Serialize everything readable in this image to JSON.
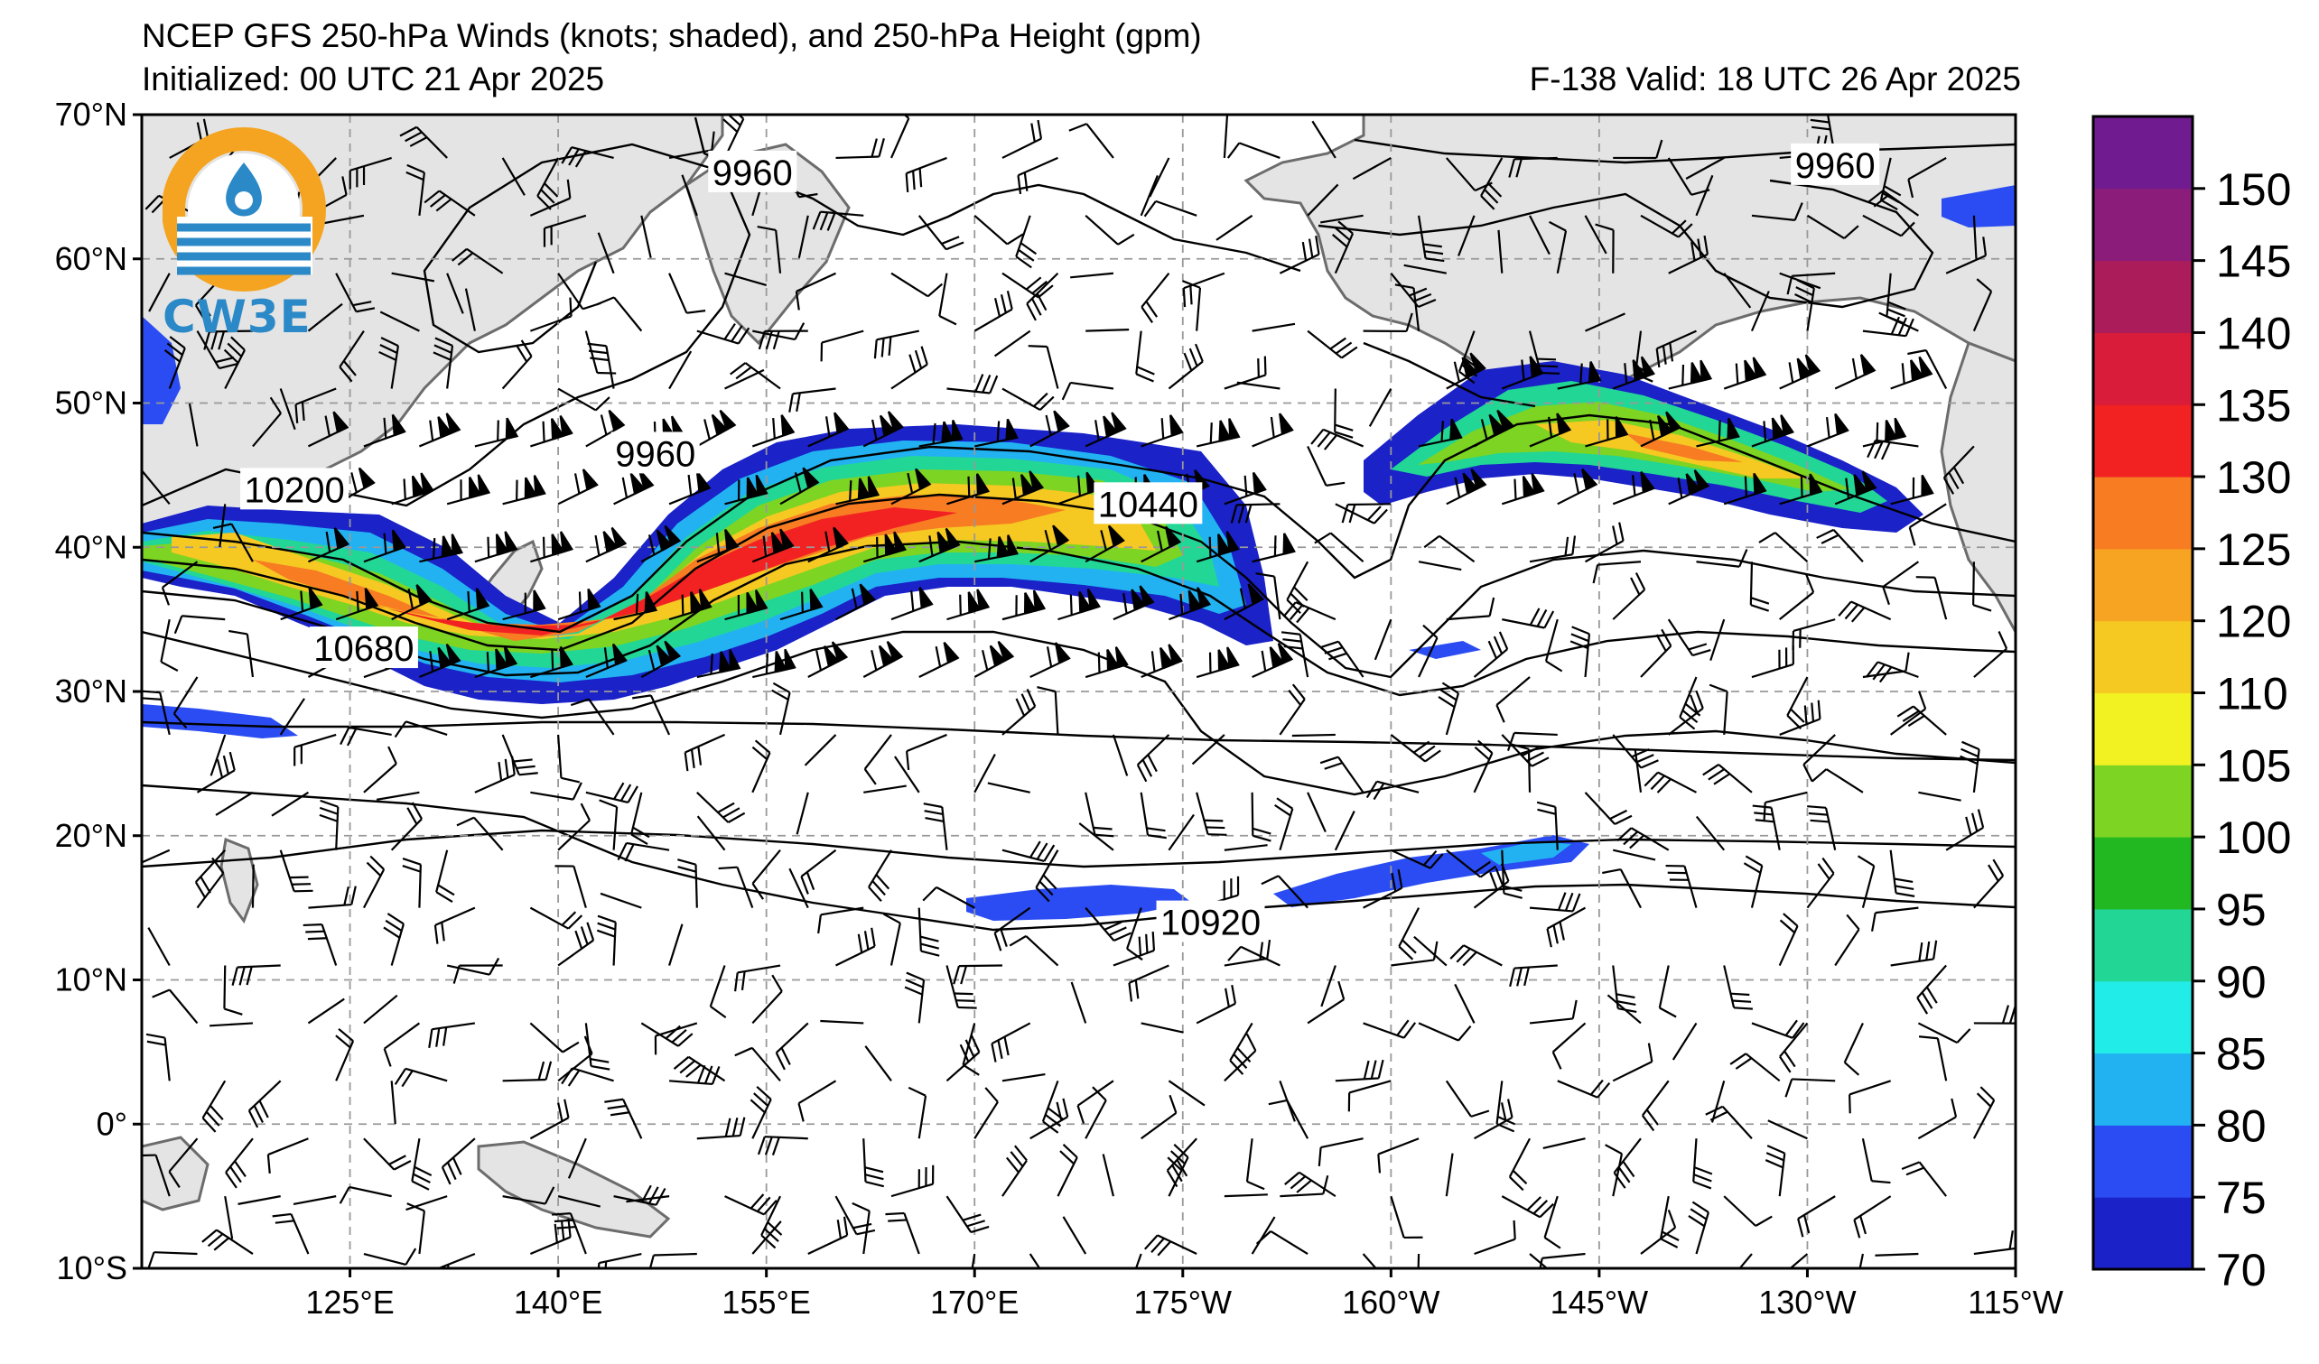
{
  "header": {
    "title": "NCEP GFS 250-hPa Winds (knots; shaded), and 250-hPa Height (gpm)",
    "initialized": "Initialized: 00 UTC 21 Apr 2025",
    "valid": "F-138  Valid: 18 UTC 26 Apr 2025"
  },
  "logo": {
    "text": "CW3E"
  },
  "map": {
    "lat_range": [
      -10,
      70
    ],
    "lon_range_east": [
      110,
      245
    ],
    "lat_ticks": [
      {
        "lat": 70,
        "label": "70°N"
      },
      {
        "lat": 60,
        "label": "60°N"
      },
      {
        "lat": 50,
        "label": "50°N"
      },
      {
        "lat": 40,
        "label": "40°N"
      },
      {
        "lat": 30,
        "label": "30°N"
      },
      {
        "lat": 20,
        "label": "20°N"
      },
      {
        "lat": 10,
        "label": "10°N"
      },
      {
        "lat": 0,
        "label": "0°"
      },
      {
        "lat": -10,
        "label": "10°S"
      }
    ],
    "lon_ticks": [
      {
        "lon": 125,
        "label": "125°E"
      },
      {
        "lon": 140,
        "label": "140°E"
      },
      {
        "lon": 155,
        "label": "155°E"
      },
      {
        "lon": 170,
        "label": "170°E"
      },
      {
        "lon": 185,
        "label": "175°W"
      },
      {
        "lon": 200,
        "label": "160°W"
      },
      {
        "lon": 215,
        "label": "145°W"
      },
      {
        "lon": 230,
        "label": "130°W"
      },
      {
        "lon": 245,
        "label": "115°W"
      }
    ],
    "contour_labels": [
      {
        "text": "9960",
        "lon": 154,
        "lat": 66
      },
      {
        "text": "9960",
        "lon": 232,
        "lat": 66.5
      },
      {
        "text": "9960",
        "lon": 147,
        "lat": 46.5
      },
      {
        "text": "10200",
        "lon": 121,
        "lat": 44
      },
      {
        "text": "10440",
        "lon": 182.5,
        "lat": 43
      },
      {
        "text": "10680",
        "lon": 126,
        "lat": 33
      },
      {
        "text": "10920",
        "lon": 187,
        "lat": 14
      }
    ]
  },
  "colorbar": {
    "ticks": [
      "70",
      "75",
      "80",
      "85",
      "90",
      "95",
      "100",
      "105",
      "110",
      "120",
      "125",
      "130",
      "135",
      "140",
      "145",
      "150"
    ],
    "colors": [
      "#1a22c8",
      "#2a4cf2",
      "#22b2f2",
      "#22ece8",
      "#22d696",
      "#22b822",
      "#7ed422",
      "#f2f222",
      "#f6c822",
      "#f6a422",
      "#f77c22",
      "#f22222",
      "#d81c3a",
      "#aa1c5a",
      "#8c1c7a",
      "#701c90"
    ]
  },
  "colors": {
    "land": "#e4e4e4",
    "coast": "#6c6c6c",
    "grid": "#999999"
  }
}
